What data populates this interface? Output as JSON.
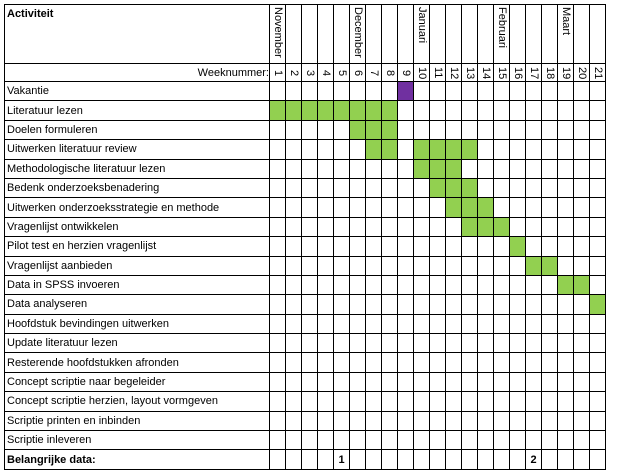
{
  "header": {
    "activity_title": "Activiteit",
    "week_label": "Weeknummer:"
  },
  "months": [
    "November",
    "",
    "",
    "",
    "",
    "December",
    "",
    "",
    "",
    "Januari",
    "",
    "",
    "",
    "",
    "Februari",
    "",
    "",
    "",
    "Maart",
    "",
    ""
  ],
  "weeks": [
    "1",
    "2",
    "3",
    "4",
    "5",
    "6",
    "7",
    "8",
    "9",
    "10",
    "11",
    "12",
    "13",
    "14",
    "15",
    "16",
    "17",
    "18",
    "19",
    "20",
    "21"
  ],
  "activities": [
    {
      "name": "Vakantie",
      "weeks": [
        9
      ],
      "color": "#7030a0"
    },
    {
      "name": "Literatuur lezen",
      "weeks": [
        1,
        2,
        3,
        4,
        5,
        6,
        7,
        8
      ],
      "color": "#92d050"
    },
    {
      "name": "Doelen formuleren",
      "weeks": [
        6,
        7,
        8
      ],
      "color": "#92d050"
    },
    {
      "name": "Uitwerken literatuur review",
      "weeks": [
        7,
        8,
        10,
        11,
        12,
        13
      ],
      "color": "#92d050"
    },
    {
      "name": "Methodologische literatuur lezen",
      "weeks": [
        10,
        11,
        12
      ],
      "color": "#92d050"
    },
    {
      "name": "Bedenk onderzoeksbenadering",
      "weeks": [
        11,
        12,
        13
      ],
      "color": "#92d050"
    },
    {
      "name": "Uitwerken onderzoeksstrategie en methode",
      "weeks": [
        12,
        13,
        14
      ],
      "color": "#92d050"
    },
    {
      "name": "Vragenlijst ontwikkelen",
      "weeks": [
        13,
        14,
        15
      ],
      "color": "#92d050"
    },
    {
      "name": "Pilot test en herzien vragenlijst",
      "weeks": [
        16
      ],
      "color": "#92d050"
    },
    {
      "name": "Vragenlijst aanbieden",
      "weeks": [
        17,
        18
      ],
      "color": "#92d050"
    },
    {
      "name": "Data in SPSS invoeren",
      "weeks": [
        19,
        20
      ],
      "color": "#92d050"
    },
    {
      "name": "Data analyseren",
      "weeks": [
        21
      ],
      "color": "#92d050"
    },
    {
      "name": "Hoofdstuk bevindingen uitwerken",
      "weeks": [],
      "color": "#92d050"
    },
    {
      "name": "Update literatuur lezen",
      "weeks": [],
      "color": "#92d050"
    },
    {
      "name": "Resterende hoofdstukken afronden",
      "weeks": [],
      "color": "#92d050"
    },
    {
      "name": "Concept scriptie naar begeleider",
      "weeks": [],
      "color": "#92d050"
    },
    {
      "name": "Concept scriptie herzien, layout vormgeven",
      "weeks": [],
      "color": "#92d050"
    },
    {
      "name": "Scriptie printen en inbinden",
      "weeks": [],
      "color": "#92d050"
    },
    {
      "name": "Scriptie inleveren",
      "weeks": [],
      "color": "#92d050"
    }
  ],
  "important": {
    "label": "Belangrijke data:",
    "markers": [
      {
        "week": 5,
        "text": "1"
      },
      {
        "week": 17,
        "text": "2"
      }
    ]
  }
}
